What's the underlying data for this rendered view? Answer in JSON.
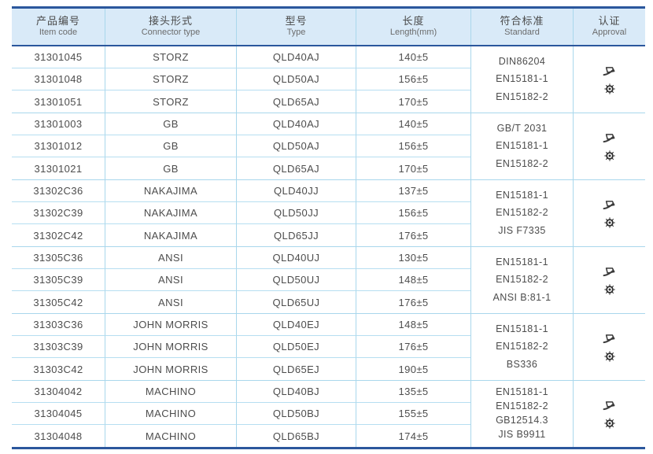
{
  "table": {
    "columns": [
      {
        "zh": "产品编号",
        "en": "Item code"
      },
      {
        "zh": "接头形式",
        "en": "Connector type"
      },
      {
        "zh": "型号",
        "en": "Type"
      },
      {
        "zh": "长度",
        "en": "Length(mm)"
      },
      {
        "zh": "符合标准",
        "en": "Standard"
      },
      {
        "zh": "认证",
        "en": "Approval"
      }
    ],
    "groups": [
      {
        "rows": [
          {
            "item_code": "31301045",
            "connector_type": "STORZ",
            "type": "QLD40AJ",
            "length": "140±5"
          },
          {
            "item_code": "31301048",
            "connector_type": "STORZ",
            "type": "QLD50AJ",
            "length": "156±5"
          },
          {
            "item_code": "31301051",
            "connector_type": "STORZ",
            "type": "QLD65AJ",
            "length": "170±5"
          }
        ],
        "standards": [
          "DIN86204",
          "EN15181-1",
          "EN15182-2"
        ],
        "approval_icons": [
          "certificate-stamp-icon",
          "wheel-certification-icon"
        ]
      },
      {
        "rows": [
          {
            "item_code": "31301003",
            "connector_type": "GB",
            "type": "QLD40AJ",
            "length": "140±5"
          },
          {
            "item_code": "31301012",
            "connector_type": "GB",
            "type": "QLD50AJ",
            "length": "156±5"
          },
          {
            "item_code": "31301021",
            "connector_type": "GB",
            "type": "QLD65AJ",
            "length": "170±5"
          }
        ],
        "standards": [
          "GB/T 2031",
          "EN15181-1",
          "EN15182-2"
        ],
        "approval_icons": [
          "certificate-stamp-icon",
          "wheel-certification-icon"
        ]
      },
      {
        "rows": [
          {
            "item_code": "31302C36",
            "connector_type": "NAKAJIMA",
            "type": "QLD40JJ",
            "length": "137±5"
          },
          {
            "item_code": "31302C39",
            "connector_type": "NAKAJIMA",
            "type": "QLD50JJ",
            "length": "156±5"
          },
          {
            "item_code": "31302C42",
            "connector_type": "NAKAJIMA",
            "type": "QLD65JJ",
            "length": "176±5"
          }
        ],
        "standards": [
          "EN15181-1",
          "EN15182-2",
          "JIS F7335"
        ],
        "approval_icons": [
          "certificate-stamp-icon",
          "wheel-certification-icon"
        ]
      },
      {
        "rows": [
          {
            "item_code": "31305C36",
            "connector_type": "ANSI",
            "type": "QLD40UJ",
            "length": "130±5"
          },
          {
            "item_code": "31305C39",
            "connector_type": "ANSI",
            "type": "QLD50UJ",
            "length": "148±5"
          },
          {
            "item_code": "31305C42",
            "connector_type": "ANSI",
            "type": "QLD65UJ",
            "length": "176±5"
          }
        ],
        "standards": [
          "EN15181-1",
          "EN15182-2",
          "ANSI B:81-1"
        ],
        "approval_icons": [
          "certificate-stamp-icon",
          "wheel-certification-icon"
        ]
      },
      {
        "rows": [
          {
            "item_code": "31303C36",
            "connector_type": "JOHN MORRIS",
            "type": "QLD40EJ",
            "length": "148±5"
          },
          {
            "item_code": "31303C39",
            "connector_type": "JOHN MORRIS",
            "type": "QLD50EJ",
            "length": "176±5"
          },
          {
            "item_code": "31303C42",
            "connector_type": "JOHN MORRIS",
            "type": "QLD65EJ",
            "length": "190±5"
          }
        ],
        "standards": [
          "EN15181-1",
          "EN15182-2",
          "BS336"
        ],
        "approval_icons": [
          "certificate-stamp-icon",
          "wheel-certification-icon"
        ]
      },
      {
        "rows": [
          {
            "item_code": "31304042",
            "connector_type": "MACHINO",
            "type": "QLD40BJ",
            "length": "135±5"
          },
          {
            "item_code": "31304045",
            "connector_type": "MACHINO",
            "type": "QLD50BJ",
            "length": "155±5"
          },
          {
            "item_code": "31304048",
            "connector_type": "MACHINO",
            "type": "QLD65BJ",
            "length": "174±5"
          }
        ],
        "standards": [
          "EN15181-1",
          "EN15182-2",
          "GB12514.3",
          "JIS B9911"
        ],
        "approval_icons": [
          "certificate-stamp-icon",
          "wheel-certification-icon"
        ]
      }
    ],
    "colors": {
      "accent_border": "#2b579d",
      "header_bg": "#d9eaf8",
      "grid_line": "#a9d7ec",
      "text": "#4d4d4d",
      "icon": "#2e2e2e"
    }
  }
}
